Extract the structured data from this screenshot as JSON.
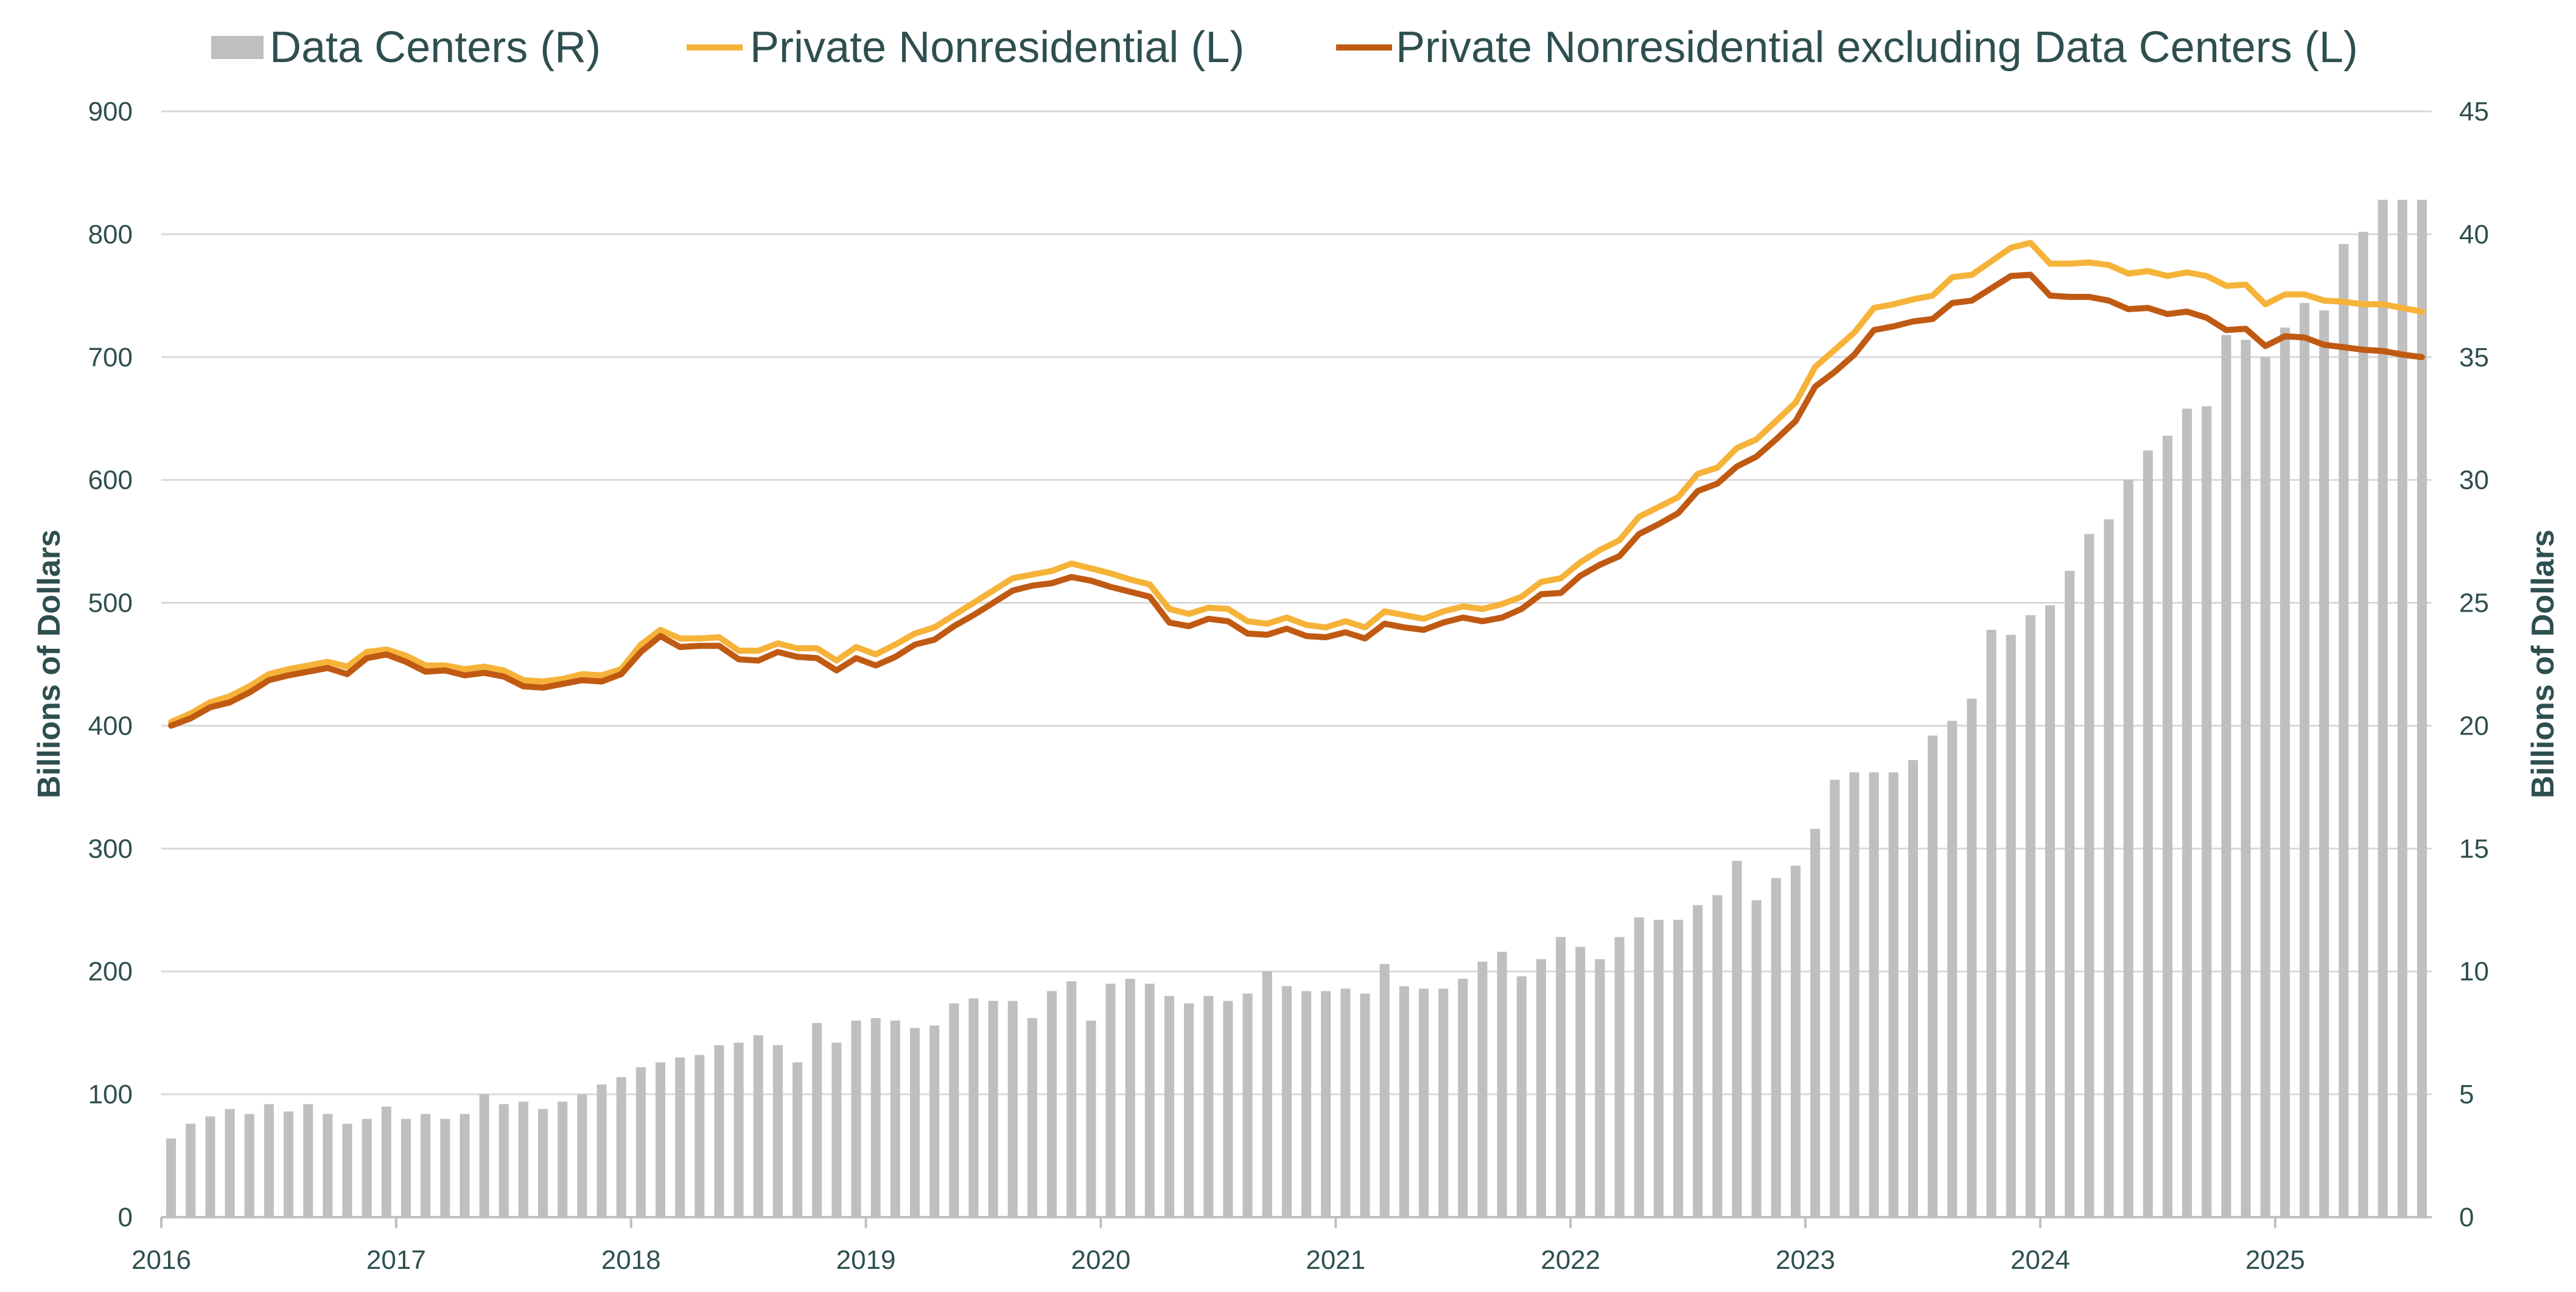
{
  "chart_data": {
    "type": "bar+line",
    "title": "",
    "x_tick_labels": [
      "2016",
      "2017",
      "2018",
      "2019",
      "2020",
      "2021",
      "2022",
      "2023",
      "2024",
      "2025"
    ],
    "x_start": "2016-01",
    "y_left": {
      "label": "Billions of Dollars",
      "lim": [
        0,
        900
      ],
      "ticks": [
        "0",
        "100",
        "200",
        "300",
        "400",
        "500",
        "600",
        "700",
        "800",
        "900"
      ]
    },
    "y_right": {
      "label": "Billions of Dollars",
      "lim": [
        0,
        45
      ],
      "ticks": [
        "0",
        "5",
        "10",
        "15",
        "20",
        "25",
        "30",
        "35",
        "40",
        "45"
      ]
    },
    "grid": true,
    "legend": {
      "placement": "top"
    },
    "series": [
      {
        "name": "Data Centers (R)",
        "type": "bar",
        "axis": "right",
        "color": "#bfbfbf",
        "values": [
          3.2,
          3.8,
          4.1,
          4.4,
          4.2,
          4.6,
          4.3,
          4.6,
          4.2,
          3.8,
          4.0,
          4.5,
          4.0,
          4.2,
          4.0,
          4.2,
          5.0,
          4.6,
          4.7,
          4.4,
          4.7,
          5.0,
          5.4,
          5.7,
          6.1,
          6.3,
          6.5,
          6.6,
          7.0,
          7.1,
          7.4,
          7.0,
          6.3,
          7.9,
          7.1,
          8.0,
          8.1,
          8.0,
          7.7,
          7.8,
          8.7,
          8.9,
          8.8,
          8.8,
          8.1,
          9.2,
          9.6,
          8.0,
          9.5,
          9.7,
          9.5,
          9.0,
          8.7,
          9.0,
          8.8,
          9.1,
          10.0,
          9.4,
          9.2,
          9.2,
          9.3,
          9.1,
          10.3,
          9.4,
          9.3,
          9.3,
          9.7,
          10.4,
          10.8,
          9.8,
          10.5,
          11.4,
          11.0,
          10.5,
          11.4,
          12.2,
          12.1,
          12.1,
          12.7,
          13.1,
          14.5,
          12.9,
          13.8,
          14.3,
          15.8,
          17.8,
          18.1,
          18.1,
          18.1,
          18.6,
          19.6,
          20.2,
          21.1,
          23.9,
          23.7,
          24.5,
          24.9,
          26.3,
          27.8,
          28.4,
          30.0,
          31.2,
          31.8,
          32.9,
          33.0,
          35.9,
          35.7,
          35.0,
          36.2,
          37.2,
          36.9,
          39.6,
          40.1,
          41.4,
          41.4,
          41.4
        ]
      },
      {
        "name": "Private Nonresidential (L)",
        "type": "line",
        "axis": "left",
        "color": "#f6b339",
        "values": [
          403,
          410,
          419,
          424,
          432,
          442,
          446,
          449,
          452,
          448,
          460,
          462,
          457,
          449,
          449,
          446,
          448,
          445,
          437,
          436,
          438,
          442,
          441,
          446,
          466,
          478,
          471,
          471,
          472,
          461,
          461,
          467,
          463,
          463,
          453,
          464,
          458,
          466,
          475,
          480,
          490,
          500,
          510,
          520,
          523,
          526,
          532,
          528,
          524,
          519,
          515,
          495,
          491,
          496,
          495,
          485,
          483,
          488,
          482,
          480,
          485,
          480,
          493,
          490,
          487,
          493,
          497,
          495,
          499,
          505,
          517,
          520,
          533,
          543,
          551,
          570,
          578,
          586,
          605,
          610,
          626,
          633,
          648,
          663,
          692,
          706,
          720,
          740,
          743,
          747,
          750,
          765,
          767,
          778,
          789,
          793,
          776,
          776,
          777,
          775,
          768,
          770,
          766,
          769,
          766,
          758,
          759,
          743,
          751,
          751,
          746,
          745,
          743,
          743,
          740,
          737
        ]
      },
      {
        "name": "Private Nonresidential excluding Data Centers (L)",
        "type": "line",
        "axis": "left",
        "color": "#c05a13",
        "values": [
          400,
          406,
          415,
          419,
          427,
          437,
          441,
          444,
          447,
          442,
          455,
          458,
          452,
          444,
          445,
          441,
          443,
          440,
          432,
          431,
          434,
          437,
          436,
          442,
          460,
          473,
          464,
          465,
          465,
          454,
          453,
          460,
          456,
          455,
          445,
          455,
          449,
          456,
          466,
          470,
          481,
          490,
          500,
          510,
          514,
          516,
          521,
          518,
          513,
          509,
          505,
          484,
          481,
          487,
          485,
          475,
          474,
          479,
          473,
          472,
          476,
          471,
          483,
          480,
          478,
          484,
          488,
          485,
          488,
          495,
          507,
          508,
          522,
          531,
          538,
          556,
          564,
          573,
          591,
          597,
          611,
          619,
          633,
          648,
          676,
          688,
          702,
          722,
          725,
          729,
          731,
          744,
          746,
          756,
          766,
          767,
          750,
          749,
          749,
          746,
          739,
          740,
          735,
          737,
          732,
          722,
          723,
          709,
          717,
          716,
          710,
          708,
          706,
          705,
          702,
          700
        ]
      }
    ]
  }
}
